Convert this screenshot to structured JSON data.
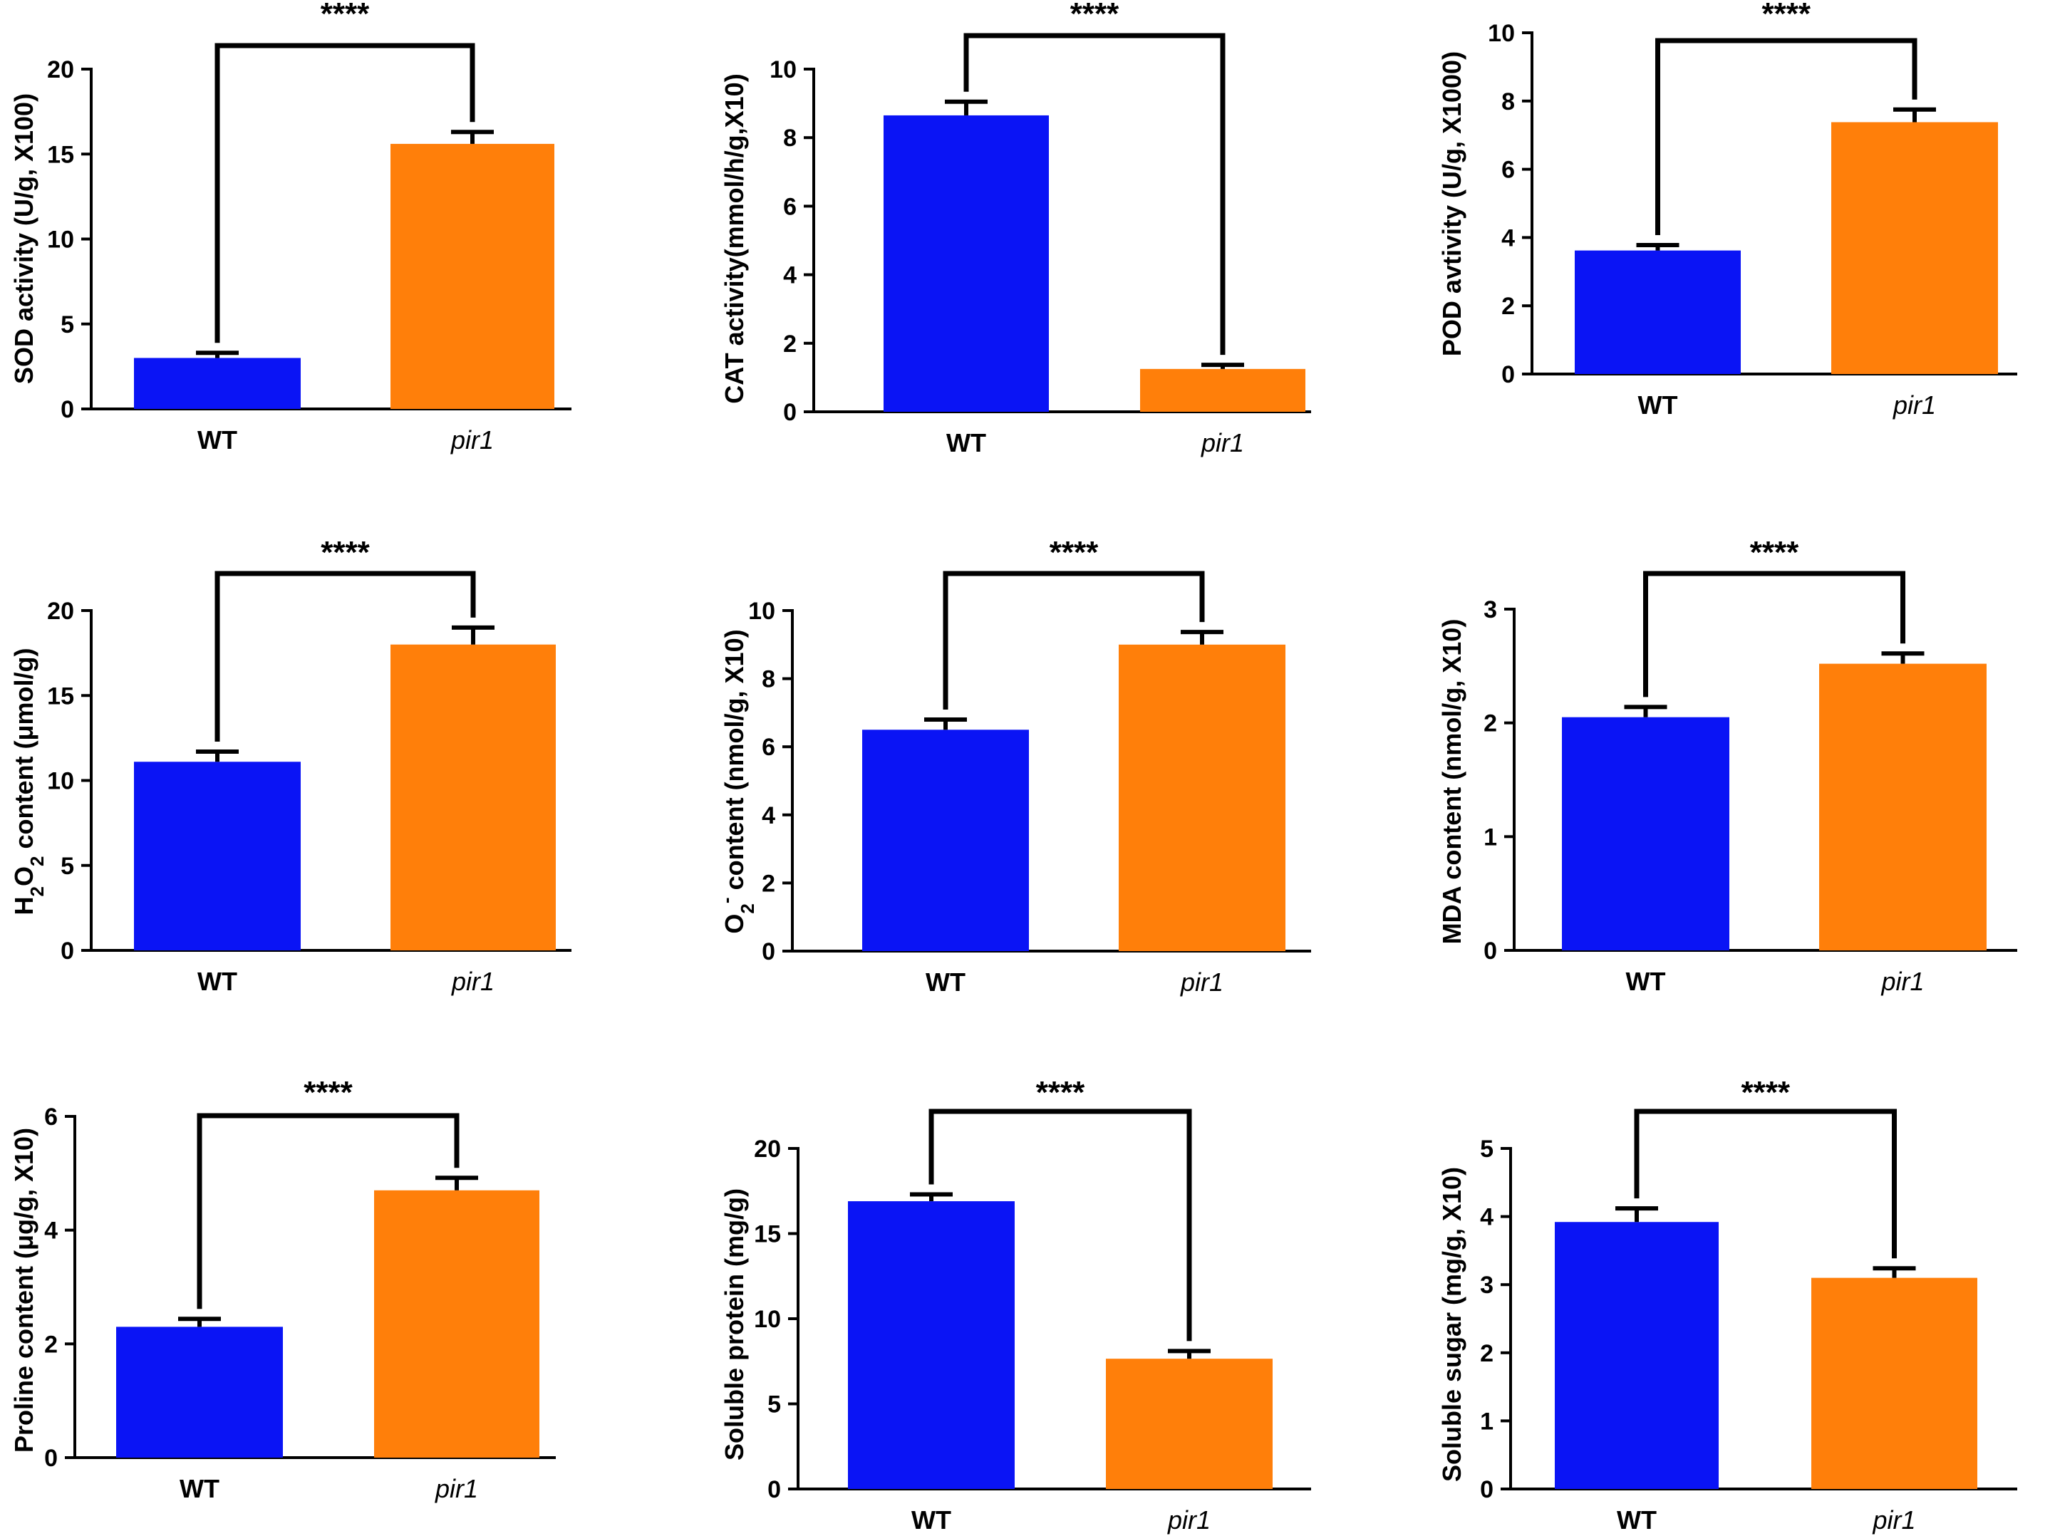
{
  "colors": {
    "WT": "#0a14f5",
    "pir1": "#ff7f0a",
    "axis": "#000000"
  },
  "chart_data": [
    {
      "type": "bar",
      "ylabel": "SOD activity (U/g, X100)",
      "categories": [
        "WT",
        "pir1"
      ],
      "values": [
        3.0,
        15.6
      ],
      "errors": [
        0.3,
        0.7
      ],
      "ylim": [
        0,
        20
      ],
      "yticks": [
        0,
        5,
        10,
        15,
        20
      ],
      "yticklabels": [
        "0",
        "5",
        "10",
        "15",
        "20"
      ],
      "significance": "****"
    },
    {
      "type": "bar",
      "ylabel": "CAT activity(mmol/h/g,X10)",
      "categories": [
        "WT",
        "pir1"
      ],
      "values": [
        8.65,
        1.25
      ],
      "errors": [
        0.4,
        0.12
      ],
      "ylim": [
        0,
        10
      ],
      "yticks": [
        0,
        2,
        4,
        6,
        8,
        10
      ],
      "yticklabels": [
        "0",
        "2",
        "4",
        "6",
        "8",
        "10"
      ],
      "significance": "****"
    },
    {
      "type": "bar",
      "ylabel": "POD avtivity (U/g, X1000)",
      "categories": [
        "WT",
        "pir1"
      ],
      "values": [
        3.62,
        7.38
      ],
      "errors": [
        0.16,
        0.37
      ],
      "ylim": [
        0,
        10
      ],
      "yticks": [
        0,
        2,
        4,
        6,
        8,
        10
      ],
      "yticklabels": [
        "0",
        "2",
        "4",
        "6",
        "8",
        "10"
      ],
      "significance": "****"
    },
    {
      "type": "bar",
      "ylabel_parts": [
        {
          "text": "H"
        },
        {
          "text": "2",
          "sub": true
        },
        {
          "text": "O"
        },
        {
          "text": "2",
          "sub": true
        },
        {
          "text": " content (μmol/g)"
        }
      ],
      "categories": [
        "WT",
        "pir1"
      ],
      "values": [
        11.1,
        18.0
      ],
      "errors": [
        0.6,
        1.0
      ],
      "ylim": [
        0,
        20
      ],
      "yticks": [
        0,
        5,
        10,
        15,
        20
      ],
      "yticklabels": [
        "0",
        "5",
        "10",
        "15",
        "20"
      ],
      "significance": "****"
    },
    {
      "type": "bar",
      "ylabel_parts": [
        {
          "text": "O"
        },
        {
          "text": "2",
          "sub": true
        },
        {
          "text": "-",
          "sup": true
        },
        {
          "text": " content (nmol/g, X10)"
        }
      ],
      "categories": [
        "WT",
        "pir1"
      ],
      "values": [
        6.5,
        9.0
      ],
      "errors": [
        0.3,
        0.37
      ],
      "ylim": [
        0,
        10
      ],
      "yticks": [
        0,
        2,
        4,
        6,
        8,
        10
      ],
      "yticklabels": [
        "0",
        "2",
        "4",
        "6",
        "8",
        "10"
      ],
      "significance": "****"
    },
    {
      "type": "bar",
      "ylabel": "MDA content (nmol/g, X10)",
      "categories": [
        "WT",
        "pir1"
      ],
      "values": [
        2.05,
        2.52
      ],
      "errors": [
        0.09,
        0.09
      ],
      "ylim": [
        0,
        3
      ],
      "yticks": [
        0,
        1,
        2,
        3
      ],
      "yticklabels": [
        "0",
        "1",
        "2",
        "3"
      ],
      "significance": "****"
    },
    {
      "type": "bar",
      "ylabel": "Proline content (μg/g, X10)",
      "categories": [
        "WT",
        "pir1"
      ],
      "values": [
        2.3,
        4.7
      ],
      "errors": [
        0.14,
        0.22
      ],
      "ylim": [
        0,
        6
      ],
      "yticks": [
        0,
        2,
        4,
        6
      ],
      "yticklabels": [
        "0",
        "2",
        "4",
        "6"
      ],
      "significance": "****"
    },
    {
      "type": "bar",
      "ylabel": "Soluble protein (mg/g)",
      "categories": [
        "WT",
        "pir1"
      ],
      "values": [
        16.9,
        7.65
      ],
      "errors": [
        0.4,
        0.45
      ],
      "ylim": [
        0,
        20
      ],
      "yticks": [
        0,
        5,
        10,
        15,
        20
      ],
      "yticklabels": [
        "0",
        "5",
        "10",
        "15",
        "20"
      ],
      "significance": "****"
    },
    {
      "type": "bar",
      "ylabel": "Soluble sugar (mg/g, X10)",
      "categories": [
        "WT",
        "pir1"
      ],
      "values": [
        3.92,
        3.1
      ],
      "errors": [
        0.2,
        0.14
      ],
      "ylim": [
        0,
        5
      ],
      "yticks": [
        0,
        1,
        2,
        3,
        4,
        5
      ],
      "yticklabels": [
        "0",
        "1",
        "2",
        "3",
        "4",
        "5"
      ],
      "significance": "****"
    }
  ]
}
